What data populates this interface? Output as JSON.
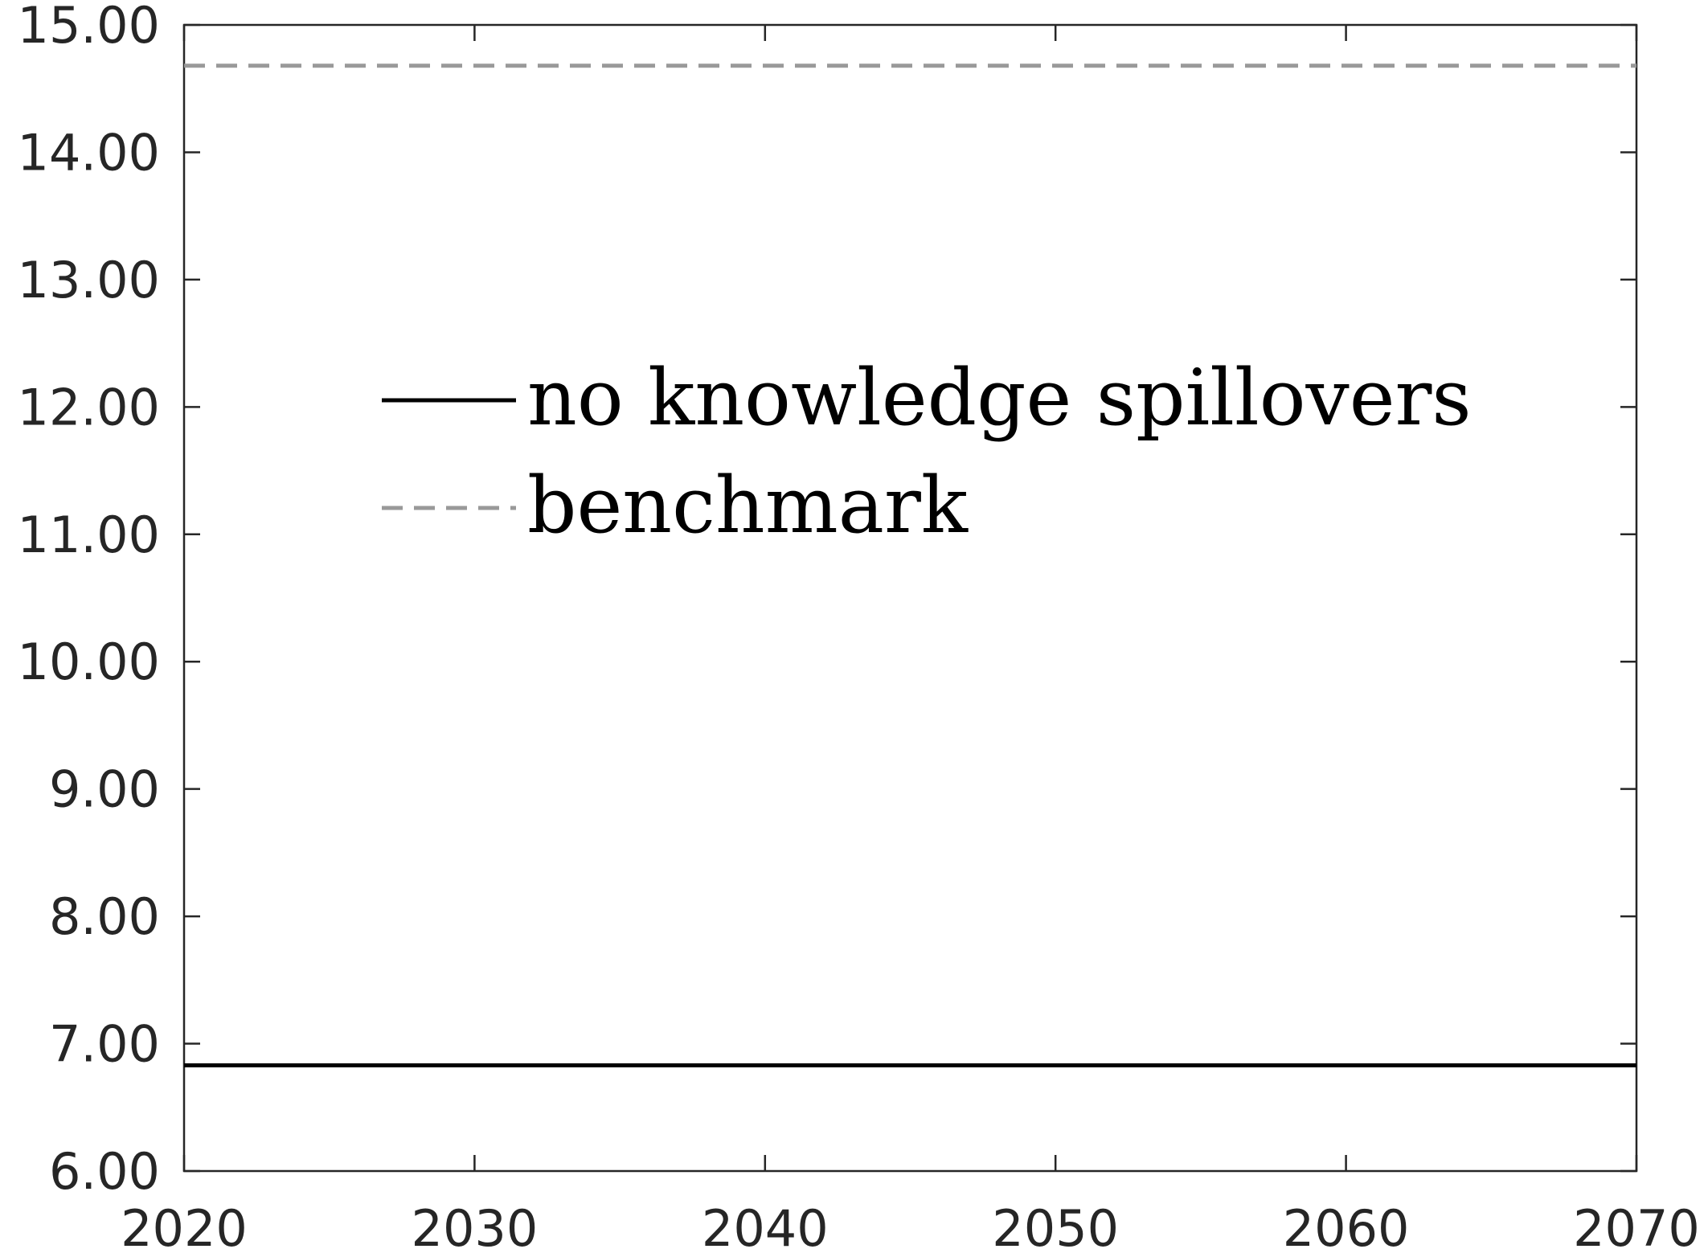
{
  "chart_data": {
    "type": "line",
    "title": "",
    "xlabel": "",
    "ylabel": "",
    "xlim": [
      2020,
      2070
    ],
    "ylim": [
      6.0,
      15.0
    ],
    "x_ticks": [
      2020,
      2030,
      2040,
      2050,
      2060,
      2070
    ],
    "x_tick_labels": [
      "2020",
      "2030",
      "2040",
      "2050",
      "2060",
      "2070"
    ],
    "y_ticks": [
      6,
      7,
      8,
      9,
      10,
      11,
      12,
      13,
      14,
      15
    ],
    "y_tick_labels": [
      "6.00",
      "7.00",
      "8.00",
      "9.00",
      "10.00",
      "11.00",
      "12.00",
      "13.00",
      "14.00",
      "15.00"
    ],
    "grid": false,
    "legend_position": "upper-left",
    "series": [
      {
        "name": "no knowledge spillovers",
        "color": "#000000",
        "style": "solid",
        "x": [
          2020,
          2070
        ],
        "y": [
          6.83,
          6.83
        ]
      },
      {
        "name": "benchmark",
        "color": "#999999",
        "style": "dashed",
        "x": [
          2020,
          2070
        ],
        "y": [
          14.68,
          14.68
        ]
      }
    ]
  }
}
